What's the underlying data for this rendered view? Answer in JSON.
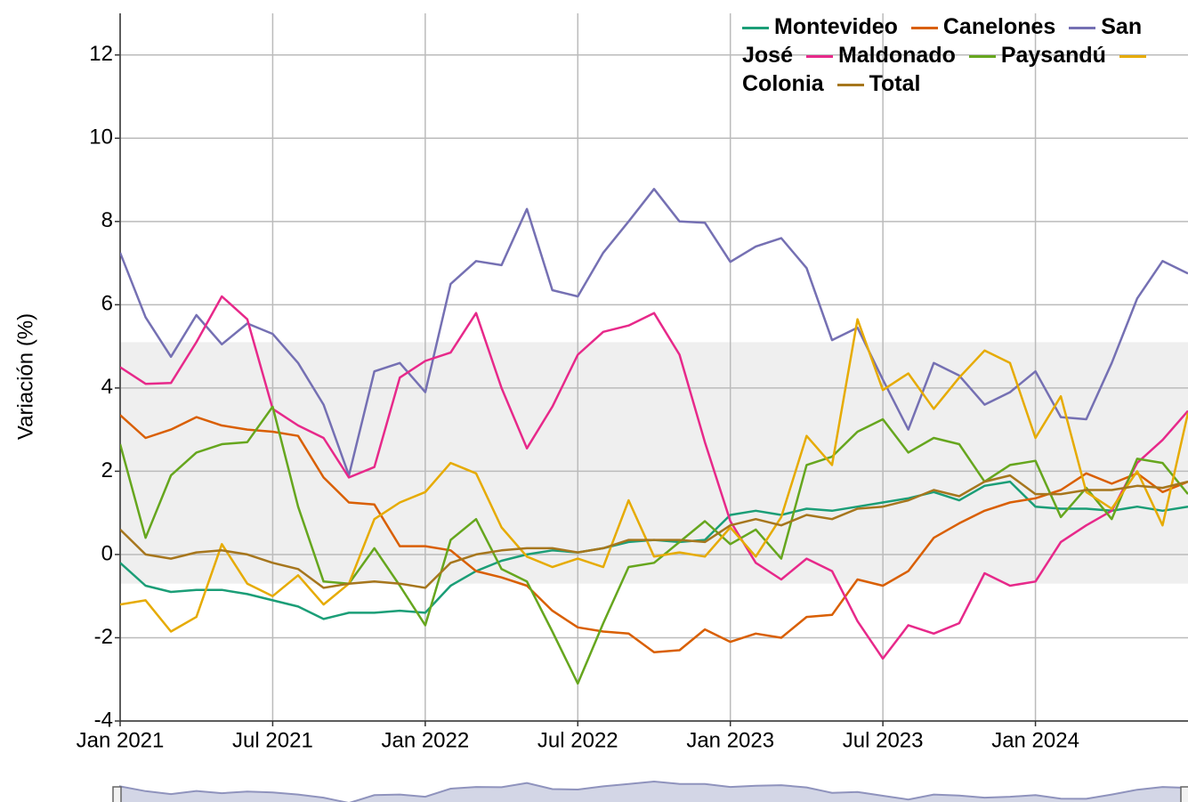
{
  "chart_data": {
    "type": "line",
    "y_label": "Variación (%)",
    "x": [
      "2021-01",
      "2021-02",
      "2021-03",
      "2021-04",
      "2021-05",
      "2021-06",
      "2021-07",
      "2021-08",
      "2021-09",
      "2021-10",
      "2021-11",
      "2021-12",
      "2022-01",
      "2022-02",
      "2022-03",
      "2022-04",
      "2022-05",
      "2022-06",
      "2022-07",
      "2022-08",
      "2022-09",
      "2022-10",
      "2022-11",
      "2022-12",
      "2023-01",
      "2023-02",
      "2023-03",
      "2023-04",
      "2023-05",
      "2023-06",
      "2023-07",
      "2023-08",
      "2023-09",
      "2023-10",
      "2023-11",
      "2023-12",
      "2024-01",
      "2024-02",
      "2024-03",
      "2024-04",
      "2024-05",
      "2024-06",
      "2024-07"
    ],
    "xlim": [
      "2021-01",
      "2024-07"
    ],
    "xticks": [
      {
        "value": "2021-01",
        "label": "Jan 2021"
      },
      {
        "value": "2021-07",
        "label": "Jul 2021"
      },
      {
        "value": "2022-01",
        "label": "Jan 2022"
      },
      {
        "value": "2022-07",
        "label": "Jul 2022"
      },
      {
        "value": "2023-01",
        "label": "Jan 2023"
      },
      {
        "value": "2023-07",
        "label": "Jul 2023"
      },
      {
        "value": "2024-01",
        "label": "Jan 2024"
      }
    ],
    "ylim": [
      -4,
      13
    ],
    "yticks": [
      -4,
      -2,
      0,
      2,
      4,
      6,
      8,
      10,
      12
    ],
    "grid": true,
    "band": {
      "from": -0.7,
      "to": 5.1,
      "color": "#efefef"
    },
    "legend": "top-right",
    "series": [
      {
        "name": "Montevideo",
        "color": "#1b9e77",
        "values": [
          -0.2,
          -0.75,
          -0.9,
          -0.85,
          -0.85,
          -0.95,
          -1.1,
          -1.25,
          -1.55,
          -1.4,
          -1.4,
          -1.35,
          -1.4,
          -0.75,
          -0.4,
          -0.15,
          0.0,
          0.1,
          0.05,
          0.15,
          0.3,
          0.35,
          0.3,
          0.35,
          0.95,
          1.05,
          0.95,
          1.1,
          1.05,
          1.15,
          1.25,
          1.35,
          1.5,
          1.3,
          1.65,
          1.75,
          1.15,
          1.1,
          1.1,
          1.05,
          1.15,
          1.05,
          1.15
        ]
      },
      {
        "name": "Canelones",
        "color": "#d95f02",
        "values": [
          3.35,
          2.8,
          3.0,
          3.3,
          3.1,
          3.0,
          2.95,
          2.85,
          1.85,
          1.25,
          1.2,
          0.2,
          0.2,
          0.1,
          -0.4,
          -0.55,
          -0.75,
          -1.35,
          -1.75,
          -1.85,
          -1.9,
          -2.35,
          -2.3,
          -1.8,
          -2.1,
          -1.9,
          -2.0,
          -1.5,
          -1.45,
          -0.6,
          -0.75,
          -0.4,
          0.4,
          0.75,
          1.05,
          1.25,
          1.35,
          1.55,
          1.95,
          1.7,
          1.95,
          1.5,
          1.75
        ]
      },
      {
        "name": "San José",
        "color": "#7570b3",
        "values": [
          7.25,
          5.7,
          4.75,
          5.75,
          5.05,
          5.55,
          5.3,
          4.6,
          3.6,
          1.9,
          4.4,
          4.6,
          3.9,
          6.5,
          7.05,
          6.95,
          8.3,
          6.35,
          6.2,
          7.25,
          8.0,
          8.78,
          8.0,
          7.97,
          7.03,
          7.4,
          7.6,
          6.88,
          5.15,
          5.45,
          4.2,
          3.0,
          4.6,
          4.3,
          3.6,
          3.9,
          4.4,
          3.3,
          3.25,
          4.6,
          6.15,
          7.05,
          6.75
        ]
      },
      {
        "name": "Maldonado",
        "color": "#e7298a",
        "values": [
          4.5,
          4.1,
          4.12,
          5.1,
          6.2,
          5.65,
          3.5,
          3.1,
          2.8,
          1.85,
          2.1,
          4.25,
          4.65,
          4.85,
          5.8,
          4.0,
          2.55,
          3.55,
          4.8,
          5.35,
          5.5,
          5.8,
          4.8,
          2.7,
          0.8,
          -0.2,
          -0.6,
          -0.1,
          -0.4,
          -1.6,
          -2.5,
          -1.7,
          -1.9,
          -1.65,
          -0.45,
          -0.75,
          -0.65,
          0.3,
          0.7,
          1.05,
          2.2,
          2.75,
          3.45
        ]
      },
      {
        "name": "Paysandú",
        "color": "#66a61e",
        "values": [
          2.65,
          0.4,
          1.9,
          2.45,
          2.65,
          2.7,
          3.55,
          1.15,
          -0.65,
          -0.7,
          0.15,
          -0.75,
          -1.7,
          0.35,
          0.85,
          -0.35,
          -0.65,
          -1.85,
          -3.1,
          -1.65,
          -0.3,
          -0.2,
          0.3,
          0.8,
          0.25,
          0.6,
          -0.1,
          2.15,
          2.35,
          2.95,
          3.25,
          2.45,
          2.8,
          2.65,
          1.75,
          2.15,
          2.25,
          0.9,
          1.6,
          0.85,
          2.3,
          2.2,
          1.45
        ]
      },
      {
        "name": "Colonia",
        "color": "#e6ab02",
        "values": [
          -1.2,
          -1.1,
          -1.85,
          -1.5,
          0.25,
          -0.7,
          -1.0,
          -0.5,
          -1.2,
          -0.7,
          0.85,
          1.25,
          1.5,
          2.2,
          1.95,
          0.65,
          -0.05,
          -0.3,
          -0.1,
          -0.3,
          1.3,
          -0.05,
          0.05,
          -0.05,
          0.65,
          -0.05,
          0.9,
          2.85,
          2.15,
          5.65,
          3.95,
          4.35,
          3.5,
          4.25,
          4.9,
          4.6,
          2.8,
          3.8,
          1.5,
          1.1,
          2.0,
          0.7,
          3.4
        ]
      },
      {
        "name": "Total",
        "color": "#a6761d",
        "values": [
          0.6,
          0.0,
          -0.1,
          0.05,
          0.1,
          0.0,
          -0.2,
          -0.35,
          -0.8,
          -0.7,
          -0.65,
          -0.7,
          -0.8,
          -0.2,
          0.0,
          0.1,
          0.15,
          0.15,
          0.05,
          0.15,
          0.35,
          0.35,
          0.35,
          0.3,
          0.7,
          0.85,
          0.7,
          0.95,
          0.85,
          1.1,
          1.15,
          1.3,
          1.55,
          1.4,
          1.75,
          1.9,
          1.45,
          1.45,
          1.55,
          1.55,
          1.65,
          1.6,
          1.75
        ]
      }
    ]
  }
}
